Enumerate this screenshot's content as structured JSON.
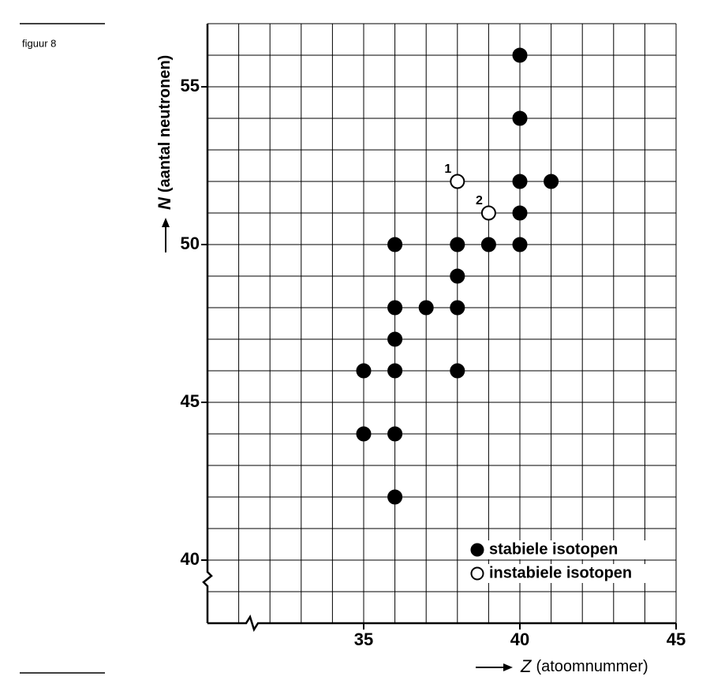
{
  "figure_label": "figuur 8",
  "chart_data": {
    "type": "scatter",
    "xlabel_symbol": "Z",
    "xlabel": "(atoomnummer)",
    "ylabel_symbol": "N",
    "ylabel": "(aantal neutronen)",
    "xlim": [
      30,
      45
    ],
    "ylim": [
      38,
      57
    ],
    "xticks": [
      35,
      40,
      45
    ],
    "yticks": [
      40,
      45,
      50,
      55
    ],
    "grid": true,
    "grid_step": 1,
    "series": [
      {
        "name": "stabiele isotopen",
        "color": "#000000",
        "filled": true,
        "x": [
          40,
          40,
          40,
          41,
          40,
          36,
          38,
          39,
          40,
          38,
          36,
          37,
          38,
          36,
          35,
          36,
          38,
          35,
          36,
          36
        ],
        "values": [
          56,
          54,
          52,
          52,
          51,
          50,
          50,
          50,
          50,
          49,
          48,
          48,
          48,
          47,
          46,
          46,
          46,
          44,
          44,
          42
        ]
      },
      {
        "name": "instabiele isotopen",
        "color": "#000000",
        "filled": false,
        "x": [
          38,
          39
        ],
        "values": [
          52,
          51
        ],
        "point_labels": [
          "1",
          "2"
        ]
      }
    ]
  }
}
